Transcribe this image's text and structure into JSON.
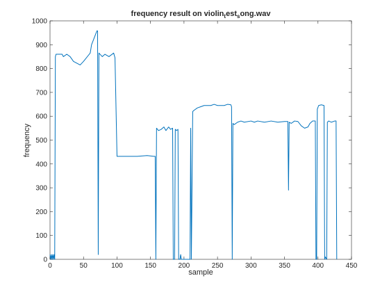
{
  "chart_data": {
    "type": "line",
    "title_parts": [
      "frequency result on violin",
      "t",
      "est",
      "s",
      "ong.wav"
    ],
    "x_label": "sample",
    "y_label": "frequency",
    "x": [
      0,
      1,
      2,
      3,
      4,
      5,
      6,
      7,
      8,
      9,
      18,
      20,
      25,
      30,
      35,
      45,
      50,
      60,
      62,
      70,
      71,
      72,
      73,
      78,
      82,
      88,
      95,
      97,
      100,
      130,
      145,
      155,
      157,
      158,
      159,
      162,
      166,
      170,
      173,
      177,
      180,
      183,
      184,
      186,
      187,
      189,
      191,
      192,
      194,
      195,
      196,
      209,
      210,
      211,
      213,
      215,
      220,
      225,
      230,
      240,
      245,
      250,
      260,
      265,
      270,
      271,
      272,
      273,
      275,
      280,
      285,
      290,
      300,
      305,
      310,
      320,
      330,
      340,
      350,
      355,
      356,
      357,
      360,
      365,
      370,
      375,
      380,
      385,
      388,
      392,
      396,
      397,
      398,
      399,
      401,
      405,
      409,
      410,
      411,
      413,
      414,
      416,
      420,
      425,
      427,
      428
    ],
    "series": [
      {
        "name": "frequency",
        "color": "#0072bd",
        "values": [
          20,
          0,
          20,
          0,
          20,
          0,
          20,
          0,
          850,
          860,
          860,
          850,
          860,
          850,
          830,
          815,
          830,
          865,
          900,
          958,
          958,
          20,
          865,
          850,
          860,
          850,
          865,
          845,
          432,
          432,
          435,
          432,
          432,
          0,
          550,
          540,
          545,
          555,
          540,
          555,
          545,
          550,
          0,
          0,
          545,
          540,
          545,
          0,
          0,
          20,
          0,
          0,
          550,
          0,
          620,
          625,
          635,
          640,
          645,
          645,
          650,
          645,
          645,
          650,
          648,
          640,
          0,
          570,
          565,
          575,
          580,
          575,
          580,
          575,
          580,
          575,
          580,
          575,
          578,
          578,
          290,
          575,
          570,
          580,
          578,
          560,
          550,
          555,
          570,
          580,
          580,
          0,
          0,
          630,
          645,
          648,
          645,
          0,
          10,
          0,
          575,
          580,
          575,
          580,
          580,
          0
        ]
      }
    ],
    "xlim": [
      0,
      450
    ],
    "xticks": [
      0,
      50,
      100,
      150,
      200,
      250,
      300,
      350,
      400,
      450
    ],
    "ylim": [
      0,
      1000
    ],
    "yticks": [
      0,
      100,
      200,
      300,
      400,
      500,
      600,
      700,
      800,
      900,
      1000
    ]
  }
}
